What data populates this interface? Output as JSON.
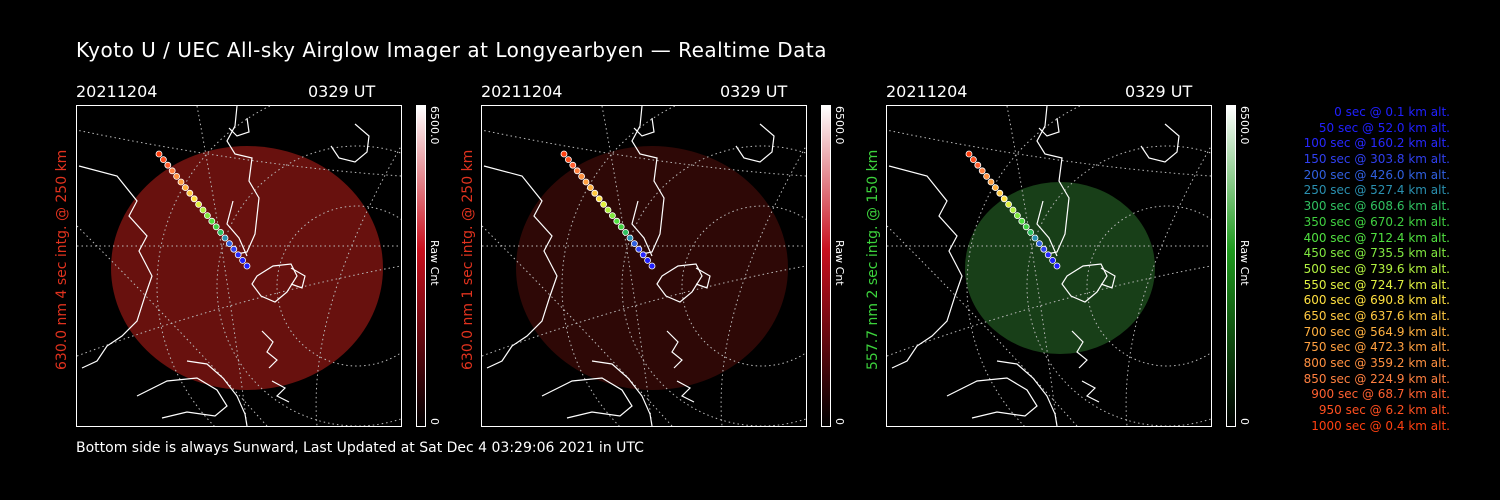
{
  "title": "Kyoto U / UEC All-sky Airglow Imager at Longyearbyen — Realtime Data",
  "panels": [
    {
      "date": "20211204",
      "time": "0329 UT",
      "side_label": "630.0 nm 4 sec intg. @ 250 km",
      "label_color": "#e0321e",
      "cbar_max": "6500.0",
      "cbar_unit": "Raw Cnt",
      "cbar_min": "0",
      "cbar_color": "#c8101e",
      "glow_color": "#7a1410",
      "glow_opacity": 0.85
    },
    {
      "date": "20211204",
      "time": "0329 UT",
      "side_label": "630.0 nm 1 sec intg. @ 250 km",
      "label_color": "#e0321e",
      "cbar_max": "6500.0",
      "cbar_unit": "Raw Cnt",
      "cbar_min": "0",
      "cbar_color": "#c8101e",
      "glow_color": "#3a0a08",
      "glow_opacity": 0.8
    },
    {
      "date": "20211204",
      "time": "0329 UT",
      "side_label": "557.7 nm 2 sec intg. @ 150 km",
      "label_color": "#3cd23c",
      "cbar_max": "6500.0",
      "cbar_unit": "Raw Cnt",
      "cbar_min": "0",
      "cbar_color": "#1e9a1e",
      "glow_color": "#1c4a1c",
      "glow_opacity": 0.85
    }
  ],
  "footer": "Bottom side is always Sunward, Last Updated at Sat Dec  4 03:29:06 2021 in UTC",
  "legend": [
    {
      "text": "0 sec @   0.1 km alt.",
      "color": "#2020ff"
    },
    {
      "text": "50 sec @  52.0 km alt.",
      "color": "#2020ff"
    },
    {
      "text": "100 sec @ 160.2 km alt.",
      "color": "#2828ff"
    },
    {
      "text": "150 sec @ 303.8 km alt.",
      "color": "#3040f0"
    },
    {
      "text": "200 sec @ 426.0 km alt.",
      "color": "#3060e0"
    },
    {
      "text": "250 sec @ 527.4 km alt.",
      "color": "#2a90b0"
    },
    {
      "text": "300 sec @ 608.6 km alt.",
      "color": "#30c060"
    },
    {
      "text": "350 sec @ 670.2 km alt.",
      "color": "#40d040"
    },
    {
      "text": "400 sec @ 712.4 km alt.",
      "color": "#50e040"
    },
    {
      "text": "450 sec @ 735.5 km alt.",
      "color": "#80e840"
    },
    {
      "text": "500 sec @ 739.6 km alt.",
      "color": "#b0f040"
    },
    {
      "text": "550 sec @ 724.7 km alt.",
      "color": "#e0f040"
    },
    {
      "text": "600 sec @ 690.8 km alt.",
      "color": "#ffe040"
    },
    {
      "text": "650 sec @ 637.6 km alt.",
      "color": "#ffc840"
    },
    {
      "text": "700 sec @ 564.9 km alt.",
      "color": "#ffb040"
    },
    {
      "text": "750 sec @ 472.3 km alt.",
      "color": "#ffa040"
    },
    {
      "text": "800 sec @ 359.2 km alt.",
      "color": "#ff9040"
    },
    {
      "text": "850 sec @ 224.9 km alt.",
      "color": "#ff8040"
    },
    {
      "text": "900 sec @  68.7 km alt.",
      "color": "#ff6030"
    },
    {
      "text": "950 sec @   6.2 km alt.",
      "color": "#ff5020"
    },
    {
      "text": "1000 sec @   0.4 km alt.",
      "color": "#ff4010"
    }
  ]
}
